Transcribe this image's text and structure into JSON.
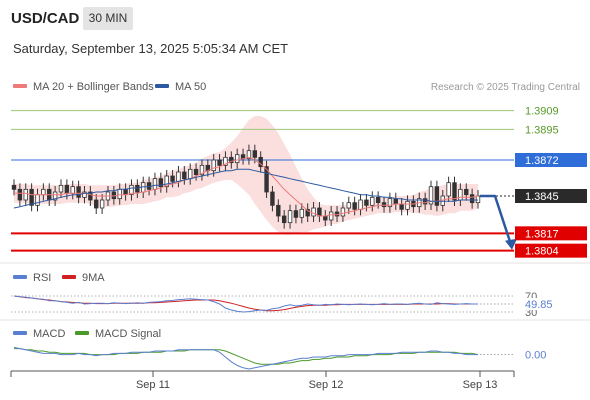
{
  "header": {
    "symbol": "USD/CAD",
    "timeframe": "30 MIN",
    "datetime": "Saturday, September 13, 2025 5:05:34 AM CET"
  },
  "legend": {
    "ma20_bb": "MA 20 + Bollinger Bands",
    "ma50": "MA 50",
    "copyright": "Research © 2025 Trading Central"
  },
  "colors": {
    "ma20": "#f07a7a",
    "ma50": "#2b5aa0",
    "bollinger_fill": "#fbdada",
    "resistance": "#9cc87a",
    "resistance_text": "#5a9a2a",
    "pivot": "#2f6ed8",
    "support": "#e00000",
    "current": "#2a2a2a",
    "candle": "#333333",
    "rsi": "#5a7fd0",
    "rsi_ma": "#d02020",
    "macd": "#5a7fd0",
    "macd_signal": "#4a9a2a"
  },
  "levels": [
    {
      "name": "resistance-2",
      "value": 1.3909,
      "label": "1.3909",
      "style": "resistance"
    },
    {
      "name": "resistance-1",
      "value": 1.3895,
      "label": "1.3895",
      "style": "resistance"
    },
    {
      "name": "pivot",
      "value": 1.3872,
      "label": "1.3872",
      "style": "pivot"
    },
    {
      "name": "current-price",
      "value": 1.3845,
      "label": "1.3845",
      "style": "current"
    },
    {
      "name": "support-1",
      "value": 1.3817,
      "label": "1.3817",
      "style": "support"
    },
    {
      "name": "support-2",
      "value": 1.3804,
      "label": "1.3804",
      "style": "support"
    }
  ],
  "chart_data": [
    {
      "type": "candlestick",
      "title": "USD/CAD",
      "ylim": [
        1.3797,
        1.3917
      ],
      "x_ticks": [
        "Sep 11",
        "Sep 12",
        "Sep 13"
      ],
      "close": [
        1.385,
        1.3842,
        1.385,
        1.3838,
        1.3846,
        1.385,
        1.3842,
        1.3848,
        1.3853,
        1.3847,
        1.3852,
        1.3844,
        1.3848,
        1.3842,
        1.3836,
        1.3842,
        1.3848,
        1.3843,
        1.385,
        1.3846,
        1.3853,
        1.3848,
        1.3855,
        1.385,
        1.3858,
        1.3852,
        1.386,
        1.3856,
        1.3863,
        1.3858,
        1.3865,
        1.3861,
        1.3868,
        1.3864,
        1.3872,
        1.3868,
        1.3874,
        1.387,
        1.3876,
        1.3873,
        1.3879,
        1.3874,
        1.3867,
        1.3848,
        1.3838,
        1.383,
        1.3825,
        1.3834,
        1.3829,
        1.3835,
        1.383,
        1.3836,
        1.383,
        1.3827,
        1.3833,
        1.383,
        1.3836,
        1.384,
        1.3835,
        1.3842,
        1.3838,
        1.3844,
        1.384,
        1.3837,
        1.3843,
        1.3839,
        1.3835,
        1.3841,
        1.3837,
        1.3843,
        1.3839,
        1.3852,
        1.3838,
        1.3845,
        1.3855,
        1.3842,
        1.385,
        1.3846,
        1.384,
        1.3845
      ],
      "ma20": [
        1.3847,
        1.3847,
        1.3847,
        1.3846,
        1.3846,
        1.3846,
        1.3846,
        1.3846,
        1.3846,
        1.3847,
        1.3847,
        1.3847,
        1.3847,
        1.3846,
        1.3845,
        1.3845,
        1.3845,
        1.3845,
        1.3846,
        1.3846,
        1.3847,
        1.3847,
        1.3848,
        1.3849,
        1.385,
        1.3851,
        1.3853,
        1.3854,
        1.3855,
        1.3857,
        1.3858,
        1.386,
        1.3862,
        1.3864,
        1.3866,
        1.3867,
        1.3869,
        1.3871,
        1.3872,
        1.3873,
        1.3874,
        1.3872,
        1.3869,
        1.3865,
        1.386,
        1.3855,
        1.385,
        1.3846,
        1.3842,
        1.3838,
        1.3834,
        1.3832,
        1.383,
        1.383,
        1.3831,
        1.3831,
        1.3832,
        1.3833,
        1.3834,
        1.3835,
        1.3836,
        1.3837,
        1.3838,
        1.3838,
        1.3838,
        1.3839,
        1.3839,
        1.3839,
        1.3839,
        1.384,
        1.384,
        1.3841,
        1.3841,
        1.3842,
        1.3843,
        1.3843,
        1.3844,
        1.3844,
        1.3844,
        1.3845
      ],
      "bb_width": [
        0.0007,
        0.0007,
        0.0007,
        0.0007,
        0.0007,
        0.0007,
        0.0007,
        0.0007,
        0.0007,
        0.0007,
        0.0007,
        0.0007,
        0.0007,
        0.0007,
        0.0008,
        0.0008,
        0.0008,
        0.0008,
        0.0008,
        0.0008,
        0.0008,
        0.0008,
        0.0009,
        0.0009,
        0.0009,
        0.0009,
        0.0009,
        0.001,
        0.001,
        0.001,
        0.001,
        0.001,
        0.0011,
        0.0011,
        0.0011,
        0.0011,
        0.0012,
        0.0014,
        0.0018,
        0.0023,
        0.0028,
        0.0033,
        0.0036,
        0.0038,
        0.0038,
        0.0037,
        0.0034,
        0.003,
        0.0025,
        0.002,
        0.0016,
        0.0012,
        0.0009,
        0.0008,
        0.0007,
        0.0007,
        0.0006,
        0.0006,
        0.0006,
        0.0006,
        0.0006,
        0.0006,
        0.0006,
        0.0006,
        0.0006,
        0.0006,
        0.0006,
        0.0006,
        0.0007,
        0.0008,
        0.0009,
        0.001,
        0.0011,
        0.0011,
        0.0011,
        0.0011,
        0.001,
        0.001,
        0.001,
        0.0009
      ],
      "ma50": [
        1.3836,
        1.3837,
        1.3838,
        1.3839,
        1.384,
        1.3841,
        1.3842,
        1.3843,
        1.3844,
        1.3845,
        1.3846,
        1.3846,
        1.3847,
        1.3847,
        1.3848,
        1.3848,
        1.3849,
        1.3849,
        1.385,
        1.385,
        1.3851,
        1.3851,
        1.3852,
        1.3852,
        1.3853,
        1.3853,
        1.3854,
        1.3855,
        1.3856,
        1.3857,
        1.3858,
        1.3859,
        1.386,
        1.3861,
        1.3862,
        1.3863,
        1.3864,
        1.3864,
        1.3865,
        1.3865,
        1.3865,
        1.3864,
        1.3863,
        1.3862,
        1.3861,
        1.386,
        1.3859,
        1.3858,
        1.3857,
        1.3856,
        1.3855,
        1.3854,
        1.3853,
        1.3852,
        1.3851,
        1.385,
        1.3849,
        1.3848,
        1.3847,
        1.3846,
        1.3846,
        1.3845,
        1.3845,
        1.3844,
        1.3844,
        1.3843,
        1.3843,
        1.3842,
        1.3842,
        1.3842,
        1.3842,
        1.3841,
        1.3841,
        1.3841,
        1.3841,
        1.3841,
        1.3842,
        1.3842,
        1.3842,
        1.3842
      ]
    },
    {
      "type": "line",
      "title": "RSI",
      "legend": [
        "RSI",
        "9MA"
      ],
      "ylim": [
        30,
        70
      ],
      "levels": [
        70,
        30
      ],
      "level_labels": [
        "70",
        "30"
      ],
      "last_value_label": "49.85",
      "rsi": [
        70,
        68,
        67,
        65,
        63,
        62,
        58,
        58,
        56,
        54,
        52,
        54,
        50,
        51,
        52,
        52,
        51,
        53,
        52,
        51,
        52,
        53,
        52,
        54,
        55,
        56,
        58,
        59,
        61,
        62,
        63,
        62,
        61,
        60,
        56,
        50,
        40,
        35,
        32,
        30,
        31,
        33,
        35,
        34,
        38,
        40,
        45,
        48,
        45,
        47,
        50,
        48,
        47,
        49,
        48,
        50,
        49,
        48,
        49,
        50,
        49,
        48,
        49,
        51,
        49,
        50,
        50,
        49,
        51,
        52,
        50,
        49,
        53,
        51,
        50,
        49,
        50,
        51,
        50,
        50
      ],
      "ma9": [
        70,
        68,
        66,
        65,
        63,
        61,
        60,
        58,
        56,
        55,
        54,
        53,
        52,
        52,
        51,
        51,
        51,
        52,
        52,
        52,
        52,
        52,
        52,
        53,
        53,
        54,
        55,
        56,
        57,
        58,
        59,
        60,
        60,
        60,
        60,
        58,
        55,
        52,
        48,
        44,
        40,
        37,
        35,
        33,
        33,
        34,
        36,
        39,
        42,
        44,
        46,
        47,
        47,
        47,
        48,
        48,
        49,
        49,
        49,
        49,
        49,
        49,
        49,
        49,
        49,
        49,
        49,
        49,
        50,
        50,
        50,
        50,
        50,
        51,
        51,
        50,
        50,
        50,
        50,
        50
      ]
    },
    {
      "type": "line",
      "title": "MACD",
      "legend": [
        "MACD",
        "MACD Signal"
      ],
      "ylim": [
        -0.0012,
        0.0008
      ],
      "zero_label": "0.00",
      "macd": [
        0.0006,
        0.0005,
        0.0004,
        0.0003,
        0.0002,
        0.0001,
        0.0001,
        0.0001,
        0.0,
        0.0,
        0.0,
        0.0001,
        0.0,
        0.0,
        -0.0001,
        0.0,
        0.0,
        0.0001,
        0.0001,
        0.0001,
        0.0002,
        0.0002,
        0.0002,
        0.0002,
        0.0003,
        0.0003,
        0.0003,
        0.0003,
        0.0004,
        0.0004,
        0.0004,
        0.0004,
        0.0004,
        0.0004,
        0.0004,
        0.0002,
        -0.0002,
        -0.0006,
        -0.0009,
        -0.0011,
        -0.0012,
        -0.0011,
        -0.001,
        -0.0009,
        -0.0008,
        -0.0007,
        -0.0006,
        -0.0005,
        -0.0004,
        -0.0003,
        -0.0003,
        -0.0002,
        -0.0002,
        -0.0002,
        -0.0001,
        -0.0001,
        -0.0001,
        0.0,
        0.0,
        0.0,
        0.0,
        0.0,
        0.0001,
        0.0001,
        0.0001,
        0.0001,
        0.0002,
        0.0002,
        0.0002,
        0.0002,
        0.0002,
        0.0003,
        0.0003,
        0.0002,
        0.0002,
        0.0001,
        0.0001,
        0.0,
        0.0,
        0.0
      ],
      "signal": [
        0.0005,
        0.0005,
        0.0004,
        0.0004,
        0.0003,
        0.0003,
        0.0002,
        0.0002,
        0.0001,
        0.0001,
        0.0001,
        0.0001,
        0.0001,
        0.0,
        0.0,
        0.0,
        0.0,
        0.0,
        0.0001,
        0.0001,
        0.0001,
        0.0001,
        0.0002,
        0.0002,
        0.0002,
        0.0002,
        0.0003,
        0.0003,
        0.0003,
        0.0003,
        0.0004,
        0.0004,
        0.0004,
        0.0004,
        0.0004,
        0.0004,
        0.0003,
        0.0001,
        -0.0001,
        -0.0003,
        -0.0005,
        -0.0007,
        -0.0008,
        -0.0008,
        -0.0008,
        -0.0008,
        -0.0007,
        -0.0007,
        -0.0006,
        -0.0005,
        -0.0005,
        -0.0004,
        -0.0004,
        -0.0003,
        -0.0003,
        -0.0002,
        -0.0002,
        -0.0002,
        -0.0001,
        -0.0001,
        -0.0001,
        0.0,
        0.0,
        0.0,
        0.0,
        0.0001,
        0.0001,
        0.0001,
        0.0001,
        0.0002,
        0.0002,
        0.0002,
        0.0002,
        0.0002,
        0.0002,
        0.0002,
        0.0001,
        0.0001,
        0.0001,
        0.0
      ]
    }
  ]
}
